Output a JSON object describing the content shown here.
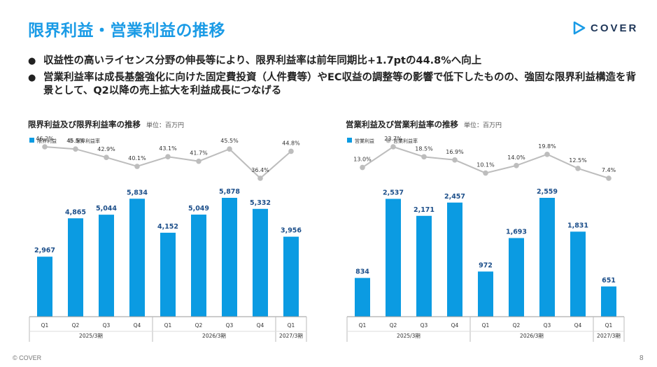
{
  "page": {
    "title": "限界利益・営業利益の推移",
    "logo_text": "COVER",
    "bullets": [
      "収益性の高いライセンス分野の伸長等により、限界利益率は前年同期比+1.7ptの44.8%へ向上",
      "営業利益率は成長基盤強化に向けた固定費投資（人件費等）やEC収益の調整等の影響で低下したものの、強固な限界利益構造を背景として、Q2以降の売上拡大を利益成長につなげる"
    ],
    "footer": "© COVER",
    "page_number": "8",
    "colors": {
      "accent": "#1a9be6",
      "bar": "#0b9be2",
      "line": "#bdbdbd"
    }
  },
  "chart_data": [
    {
      "type": "bar",
      "title": "限界利益及び限界利益率の推移",
      "unit": "単位：百万円",
      "categories": [
        "Q1",
        "Q2",
        "Q3",
        "Q4",
        "Q1",
        "Q2",
        "Q3",
        "Q4",
        "Q1"
      ],
      "groups": [
        {
          "label": "2025/3期",
          "count": 4
        },
        {
          "label": "2026/3期",
          "count": 4
        },
        {
          "label": "2027/3期",
          "count": 1
        }
      ],
      "series": [
        {
          "name": "限界利益",
          "type": "bar",
          "values": [
            2967,
            4865,
            5044,
            5834,
            4152,
            5049,
            5878,
            5332,
            3956
          ],
          "labels": [
            "2,967",
            "4,865",
            "5,044",
            "5,834",
            "4,152",
            "5,049",
            "5,878",
            "5,332",
            "3,956"
          ]
        },
        {
          "name": "限界利益率",
          "type": "line",
          "values": [
            46.2,
            45.5,
            42.9,
            40.1,
            43.1,
            41.7,
            45.5,
            36.4,
            44.8
          ],
          "labels": [
            "46.2%",
            "45.5%",
            "42.9%",
            "40.1%",
            "43.1%",
            "41.7%",
            "45.5%",
            "36.4%",
            "44.8%"
          ]
        }
      ],
      "bar_ylim": [
        0,
        7000
      ],
      "line_ylim": [
        0,
        100
      ],
      "legend": "top-left",
      "grid": false
    },
    {
      "type": "bar",
      "title": "営業利益及び営業利益率の推移",
      "unit": "単位：百万円",
      "categories": [
        "Q1",
        "Q2",
        "Q3",
        "Q4",
        "Q1",
        "Q2",
        "Q3",
        "Q4",
        "Q1"
      ],
      "groups": [
        {
          "label": "2025/3期",
          "count": 4
        },
        {
          "label": "2026/3期",
          "count": 4
        },
        {
          "label": "2027/3期",
          "count": 1
        }
      ],
      "series": [
        {
          "name": "営業利益",
          "type": "bar",
          "values": [
            834,
            2537,
            2171,
            2457,
            972,
            1693,
            2559,
            1831,
            651
          ],
          "labels": [
            "834",
            "2,537",
            "2,171",
            "2,457",
            "972",
            "1,693",
            "2,559",
            "1,831",
            "651"
          ]
        },
        {
          "name": "営業利益率",
          "type": "line",
          "values": [
            13.0,
            23.7,
            18.5,
            16.9,
            10.1,
            14.0,
            19.8,
            12.5,
            7.4
          ],
          "labels": [
            "13.0%",
            "23.7%",
            "18.5%",
            "16.9%",
            "10.1%",
            "14.0%",
            "19.8%",
            "12.5%",
            "7.4%"
          ]
        }
      ],
      "bar_ylim": [
        0,
        3000
      ],
      "line_ylim": [
        0,
        40
      ],
      "legend": "top-left",
      "grid": false
    }
  ]
}
